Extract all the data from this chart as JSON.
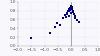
{
  "points": [
    [
      -0.8,
      0.3
    ],
    [
      -0.55,
      0.52
    ],
    [
      -0.42,
      0.48
    ],
    [
      -1.5,
      0.18
    ],
    [
      -0.3,
      0.62
    ],
    [
      -0.25,
      0.7
    ],
    [
      -0.2,
      0.66
    ],
    [
      -0.18,
      0.72
    ],
    [
      -0.15,
      0.75
    ],
    [
      -0.12,
      0.78
    ],
    [
      -0.1,
      0.68
    ],
    [
      -0.08,
      0.8
    ],
    [
      -0.07,
      0.84
    ],
    [
      -0.05,
      0.82
    ],
    [
      -0.04,
      0.86
    ],
    [
      -0.03,
      0.74
    ],
    [
      -0.02,
      0.88
    ],
    [
      -0.01,
      0.9
    ],
    [
      0.0,
      0.85
    ],
    [
      0.01,
      0.87
    ],
    [
      0.02,
      0.83
    ],
    [
      0.03,
      0.89
    ],
    [
      0.05,
      0.79
    ],
    [
      0.08,
      0.76
    ],
    [
      0.1,
      0.72
    ],
    [
      0.12,
      0.68
    ],
    [
      0.15,
      0.64
    ],
    [
      0.2,
      0.58
    ],
    [
      0.28,
      0.53
    ],
    [
      -0.6,
      0.42
    ]
  ],
  "marker_color": "#00008B",
  "marker_size": 2.5,
  "vline_x": 0.0,
  "xlim": [
    -2.0,
    1.0
  ],
  "ylim": [
    0.0,
    1.0
  ],
  "xtick_vals": [
    -2.0,
    -1.5,
    -1.0,
    -0.5,
    0.0,
    0.5,
    1.0
  ],
  "ytick_vals": [
    0.0,
    0.2,
    0.4,
    0.6,
    0.8,
    1.0
  ],
  "bg_color": "#f8f8fc",
  "axes_color": "#aaaaaa",
  "tick_fontsize": 3.0,
  "grid_color": "#ddddee",
  "vline_color": "#888888",
  "vline_lw": 0.5
}
